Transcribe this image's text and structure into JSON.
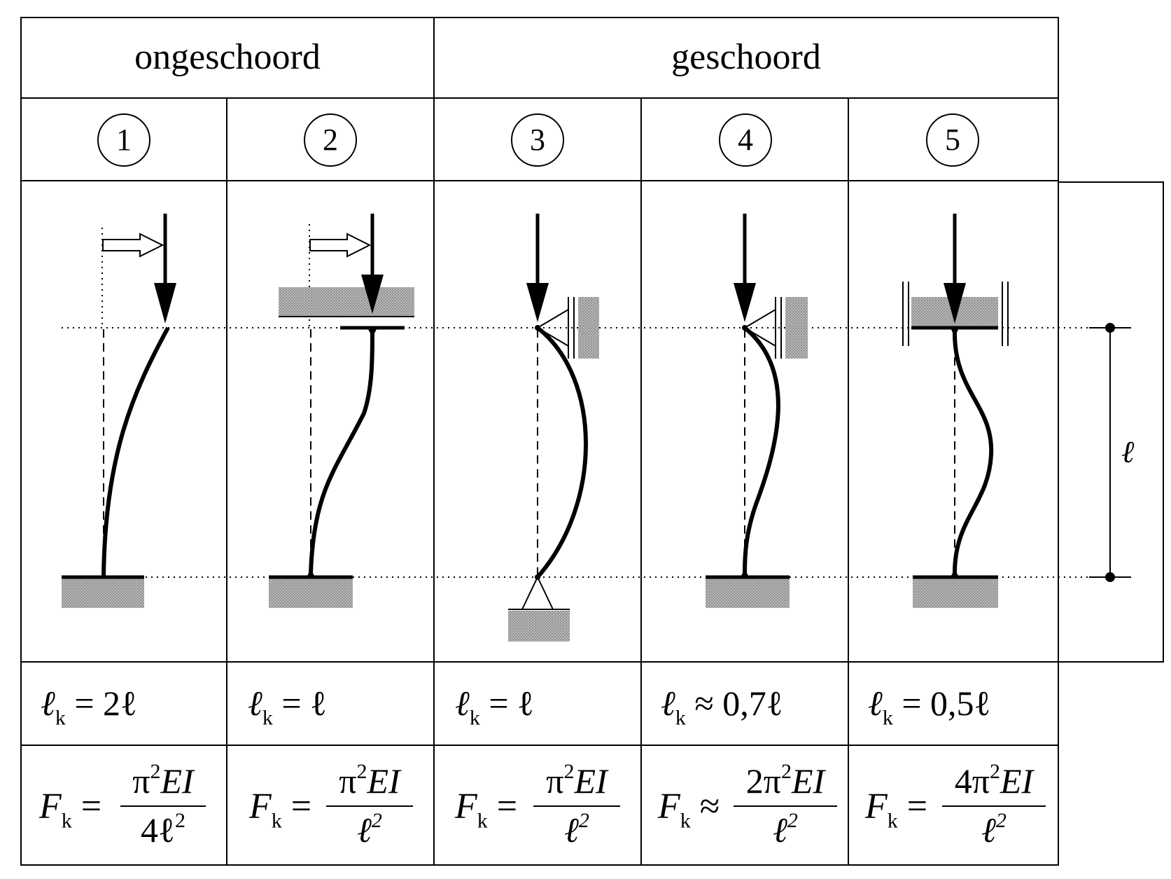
{
  "headers": {
    "unbraced": "ongeschoord",
    "braced": "geschoord"
  },
  "cases": [
    {
      "num": "1",
      "lk_rel": "=",
      "lk_value": "2ℓ",
      "fk_rel": "=",
      "fk_num_coef": "",
      "fk_den": "4ℓ"
    },
    {
      "num": "2",
      "lk_rel": "=",
      "lk_value": "ℓ",
      "fk_rel": "=",
      "fk_num_coef": "",
      "fk_den": "ℓ"
    },
    {
      "num": "3",
      "lk_rel": "=",
      "lk_value": "ℓ",
      "fk_rel": "=",
      "fk_num_coef": "",
      "fk_den": "ℓ"
    },
    {
      "num": "4",
      "lk_rel": "≈",
      "lk_value": "0,7ℓ",
      "fk_rel": "≈",
      "fk_num_coef": "2",
      "fk_den": "ℓ"
    },
    {
      "num": "5",
      "lk_rel": "=",
      "lk_value": "0,5ℓ",
      "fk_rel": "=",
      "fk_num_coef": "4",
      "fk_den": "ℓ"
    }
  ],
  "symbols": {
    "ell": "ℓ",
    "lk_base": "ℓ",
    "k_sub": "k",
    "F": "F",
    "pi": "π",
    "square": "2",
    "EI": "EI"
  },
  "dimension_label": "ℓ"
}
